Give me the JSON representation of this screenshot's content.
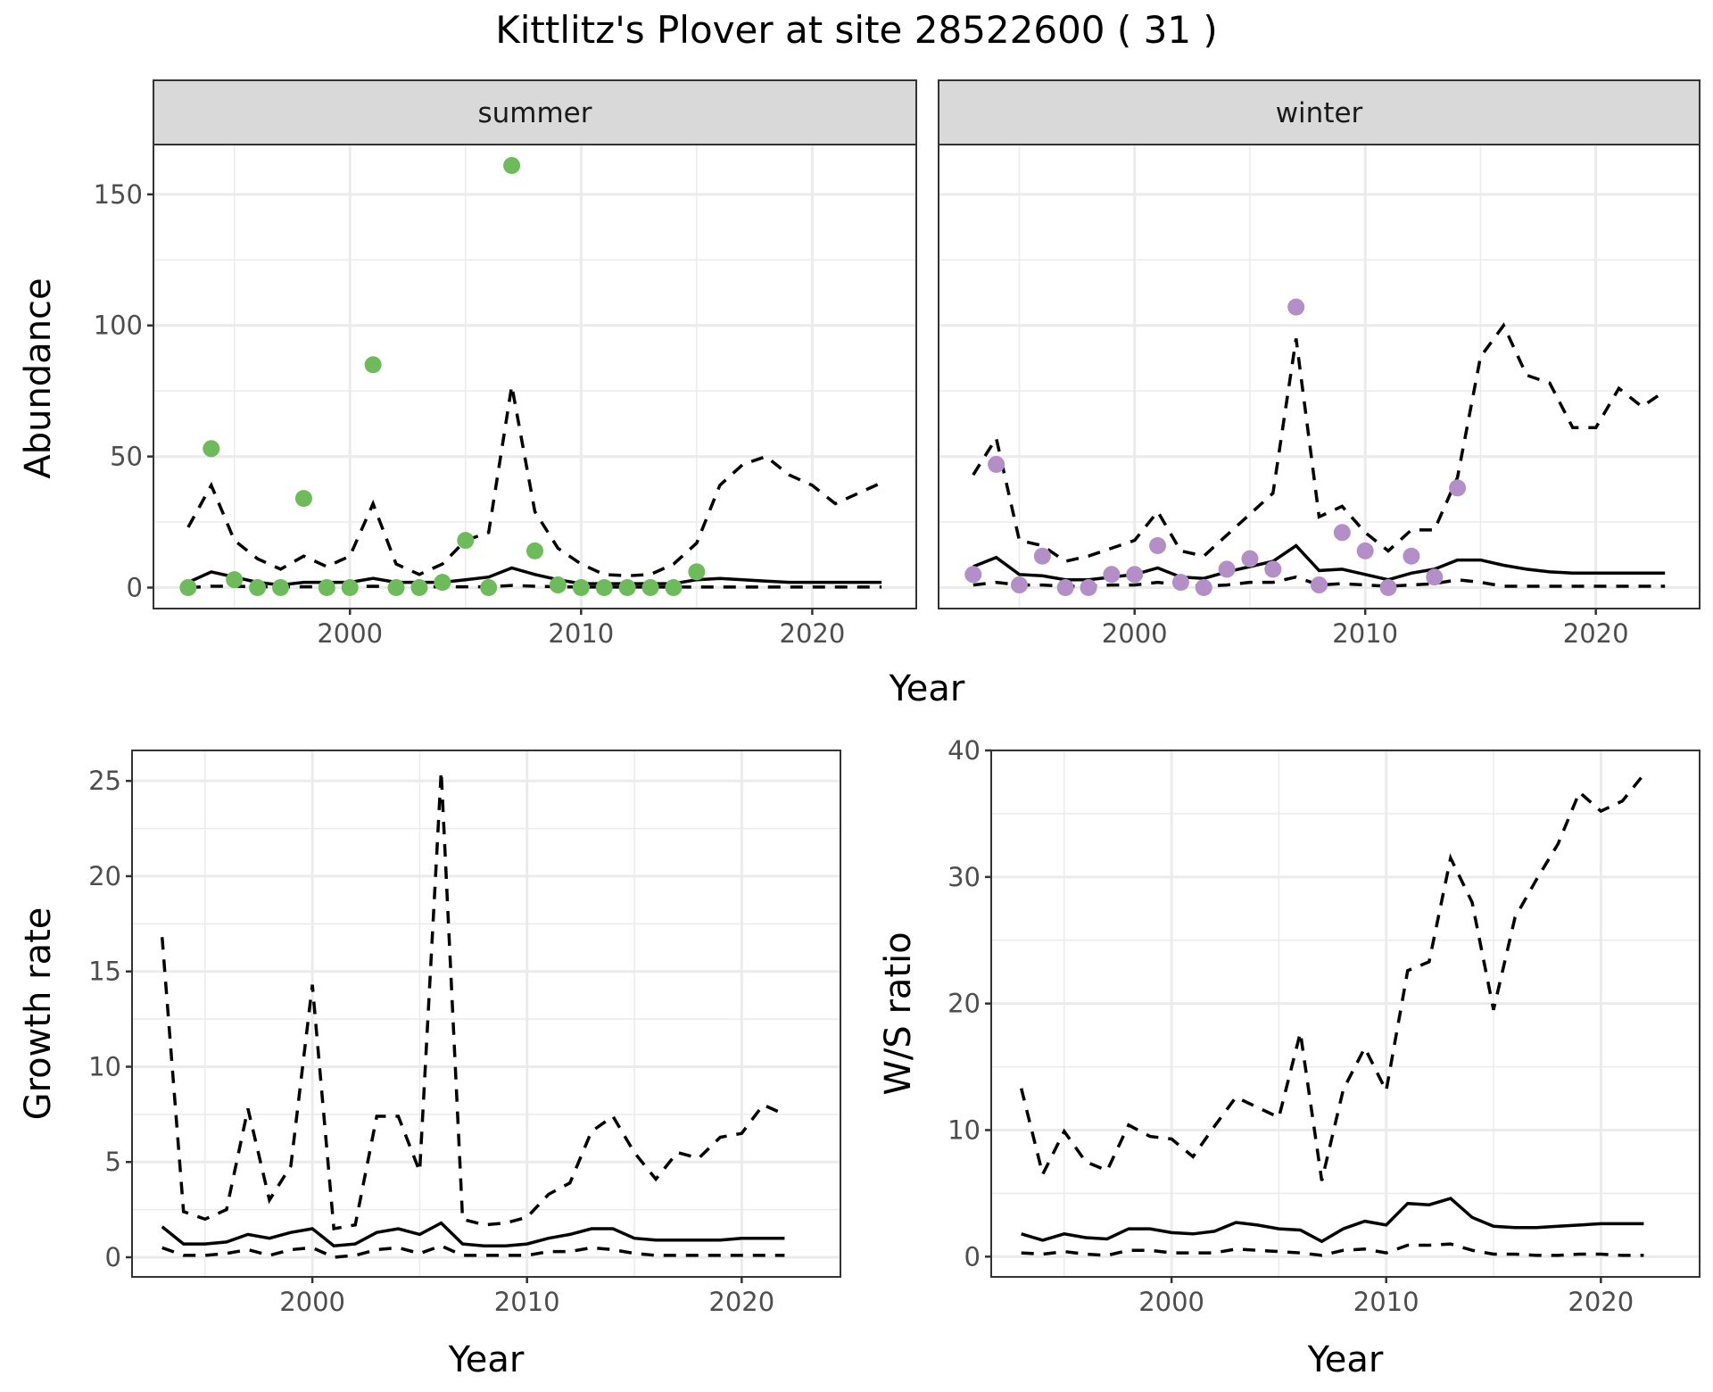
{
  "title": "Kittlitz's Plover at site 28522600 ( 31 )",
  "colors": {
    "summer_points": "#6dbb5b",
    "winter_points": "#b48fc7",
    "line": "#000000",
    "grid": "#ebebeb",
    "strip": "#d9d9d9"
  },
  "chart_data": [
    {
      "type": "scatter",
      "panel": "summer",
      "strip_label": "summer",
      "xlabel": "Year",
      "ylabel": "Abundance",
      "ylim": [
        -8,
        169
      ],
      "xlim": [
        1991.5,
        2024.5
      ],
      "yticks": [
        0,
        50,
        100,
        150
      ],
      "ytick_labels": [
        "0",
        "50",
        "100",
        "150"
      ],
      "xticks": [
        2000,
        2010,
        2020
      ],
      "xtick_labels": [
        "2000",
        "2010",
        "2020"
      ],
      "points": {
        "x": [
          1993,
          1994,
          1995,
          1996,
          1997,
          1998,
          1999,
          2000,
          2001,
          2002,
          2003,
          2004,
          2005,
          2006,
          2007,
          2008,
          2009,
          2010,
          2011,
          2012,
          2013,
          2014,
          2015
        ],
        "y": [
          0,
          53,
          3,
          0,
          0,
          34,
          0,
          0,
          85,
          0,
          0,
          2,
          18,
          0,
          161,
          14,
          1,
          0,
          0,
          0,
          0,
          0,
          6
        ]
      },
      "lines": {
        "x": [
          1993,
          1994,
          1995,
          1996,
          1997,
          1998,
          1999,
          2000,
          2001,
          2002,
          2003,
          2004,
          2005,
          2006,
          2007,
          2008,
          2009,
          2010,
          2011,
          2012,
          2013,
          2014,
          2015,
          2016,
          2017,
          2018,
          2019,
          2020,
          2021,
          2022,
          2023
        ],
        "mean": [
          2,
          6,
          4,
          2,
          1,
          2,
          2,
          2,
          3.5,
          2,
          2,
          2,
          3,
          4,
          7.5,
          5,
          3,
          1.5,
          1.5,
          1.5,
          1.5,
          1.5,
          3,
          3.5,
          3,
          2.5,
          2,
          2,
          2,
          2,
          2
        ],
        "upper": [
          23,
          39,
          18,
          11,
          7,
          12,
          8,
          12,
          32,
          9,
          5,
          9,
          18,
          21,
          77,
          29,
          15,
          9,
          5,
          4.5,
          5,
          9,
          17,
          39,
          47,
          50,
          43,
          39,
          32,
          36,
          40
        ],
        "lower": [
          0,
          0.5,
          0.5,
          0.3,
          0.3,
          0.3,
          0.3,
          0.3,
          0.5,
          0.3,
          0.3,
          0.3,
          0.3,
          0.3,
          0.8,
          0.5,
          0.3,
          0.2,
          0.2,
          0.2,
          0.2,
          0.2,
          0.2,
          0.2,
          0.2,
          0.2,
          0.2,
          0.2,
          0.2,
          0.2,
          0.2
        ]
      }
    },
    {
      "type": "scatter",
      "panel": "winter",
      "strip_label": "winter",
      "xlabel": "Year",
      "ylabel": "Abundance",
      "ylim": [
        -8,
        169
      ],
      "xlim": [
        1991.5,
        2024.5
      ],
      "xticks": [
        2000,
        2010,
        2020
      ],
      "xtick_labels": [
        "2000",
        "2010",
        "2020"
      ],
      "points": {
        "x": [
          1993,
          1994,
          1995,
          1996,
          1997,
          1998,
          1999,
          2000,
          2001,
          2002,
          2003,
          2004,
          2005,
          2006,
          2007,
          2008,
          2009,
          2010,
          2011,
          2012,
          2013,
          2014
        ],
        "y": [
          5,
          47,
          1,
          12,
          0,
          0,
          5,
          5,
          16,
          2,
          0,
          7,
          11,
          7,
          107,
          1,
          21,
          14,
          0,
          12,
          4,
          38
        ]
      },
      "lines": {
        "x": [
          1993,
          1994,
          1995,
          1996,
          1997,
          1998,
          1999,
          2000,
          2001,
          2002,
          2003,
          2004,
          2005,
          2006,
          2007,
          2008,
          2009,
          2010,
          2011,
          2012,
          2013,
          2014,
          2015,
          2016,
          2017,
          2018,
          2019,
          2020,
          2021,
          2022,
          2023
        ],
        "mean": [
          8,
          11.5,
          5,
          4.5,
          3,
          3,
          4,
          5,
          7.5,
          4,
          3.5,
          6,
          8,
          10,
          16,
          6.5,
          7,
          5,
          3,
          5.5,
          7,
          10.5,
          10.5,
          8.5,
          7,
          6,
          5.5,
          5.5,
          5.5,
          5.5,
          5.5
        ],
        "upper": [
          43,
          57,
          18,
          16,
          10,
          12,
          15,
          18,
          29,
          14,
          12,
          20,
          28,
          36,
          95,
          27,
          31,
          21,
          14,
          22,
          22,
          42,
          88,
          100,
          81,
          78,
          61,
          61,
          76,
          69,
          75
        ],
        "lower": [
          1,
          2,
          1,
          1,
          0.5,
          0.5,
          1,
          1,
          2,
          1,
          0.5,
          1,
          2,
          2,
          4,
          1,
          1.5,
          1,
          0.5,
          1,
          1.5,
          3,
          2,
          0.5,
          0.5,
          0.5,
          0.5,
          0.5,
          0.5,
          0.5,
          0.5
        ]
      }
    },
    {
      "type": "line",
      "panel": "growth",
      "xlabel": "Year",
      "ylabel": "Growth rate",
      "ylim": [
        -1.03,
        26.6
      ],
      "xlim": [
        1991.6,
        2024.6
      ],
      "yticks": [
        0,
        5,
        10,
        15,
        20,
        25
      ],
      "ytick_labels": [
        "0",
        "5",
        "10",
        "15",
        "20",
        "25"
      ],
      "xticks": [
        2000,
        2010,
        2020
      ],
      "xtick_labels": [
        "2000",
        "2010",
        "2020"
      ],
      "lines": {
        "x": [
          1993,
          1994,
          1995,
          1996,
          1997,
          1998,
          1999,
          2000,
          2001,
          2002,
          2003,
          2004,
          2005,
          2006,
          2007,
          2008,
          2009,
          2010,
          2011,
          2012,
          2013,
          2014,
          2015,
          2016,
          2017,
          2018,
          2019,
          2020,
          2021,
          2022
        ],
        "mean": [
          1.6,
          0.7,
          0.7,
          0.8,
          1.2,
          1.0,
          1.3,
          1.5,
          0.6,
          0.7,
          1.3,
          1.5,
          1.2,
          1.8,
          0.7,
          0.6,
          0.6,
          0.7,
          1.0,
          1.2,
          1.5,
          1.5,
          1.0,
          0.9,
          0.9,
          0.9,
          0.9,
          1.0,
          1.0,
          1.0
        ],
        "upper": [
          16.8,
          2.4,
          2.0,
          2.5,
          7.8,
          3.0,
          4.8,
          14.3,
          1.5,
          1.7,
          7.4,
          7.4,
          4.5,
          25.5,
          2.0,
          1.7,
          1.8,
          2.1,
          3.3,
          3.9,
          6.6,
          7.4,
          5.5,
          4.1,
          5.5,
          5.2,
          6.3,
          6.5,
          8.0,
          7.5
        ],
        "lower": [
          0.5,
          0.1,
          0.1,
          0.2,
          0.4,
          0.1,
          0.4,
          0.5,
          0.0,
          0.1,
          0.4,
          0.5,
          0.2,
          0.6,
          0.1,
          0.1,
          0.1,
          0.1,
          0.3,
          0.3,
          0.5,
          0.4,
          0.2,
          0.1,
          0.1,
          0.1,
          0.1,
          0.1,
          0.1,
          0.1
        ]
      }
    },
    {
      "type": "line",
      "panel": "ratio",
      "xlabel": "Year",
      "ylabel": "W/S ratio",
      "ylim": [
        -1.6,
        40
      ],
      "xlim": [
        1991.6,
        2024.6
      ],
      "yticks": [
        0,
        10,
        20,
        30,
        40
      ],
      "ytick_labels": [
        "0",
        "10",
        "20",
        "30",
        "40"
      ],
      "xticks": [
        2000,
        2010,
        2020
      ],
      "xtick_labels": [
        "2000",
        "2010",
        "2020"
      ],
      "lines": {
        "x": [
          1993,
          1994,
          1995,
          1996,
          1997,
          1998,
          1999,
          2000,
          2001,
          2002,
          2003,
          2004,
          2005,
          2006,
          2007,
          2008,
          2009,
          2010,
          2011,
          2012,
          2013,
          2014,
          2015,
          2016,
          2017,
          2018,
          2019,
          2020,
          2021,
          2022
        ],
        "mean": [
          1.8,
          1.3,
          1.8,
          1.5,
          1.4,
          2.2,
          2.2,
          1.9,
          1.8,
          2.0,
          2.7,
          2.5,
          2.2,
          2.1,
          1.2,
          2.2,
          2.8,
          2.5,
          4.2,
          4.1,
          4.6,
          3.1,
          2.4,
          2.3,
          2.3,
          2.4,
          2.5,
          2.6,
          2.6,
          2.6
        ],
        "upper": [
          13.3,
          6.5,
          9.9,
          7.5,
          6.8,
          10.4,
          9.5,
          9.3,
          7.9,
          10.3,
          12.6,
          11.8,
          11.0,
          17.7,
          6.0,
          13.2,
          16.5,
          13.1,
          22.6,
          23.3,
          31.5,
          28.0,
          19.5,
          26.8,
          29.8,
          32.6,
          36.7,
          35.2,
          36.0,
          38.1
        ],
        "lower": [
          0.3,
          0.2,
          0.4,
          0.2,
          0.1,
          0.5,
          0.5,
          0.3,
          0.3,
          0.3,
          0.6,
          0.5,
          0.4,
          0.3,
          0.1,
          0.5,
          0.6,
          0.3,
          0.9,
          0.9,
          1.0,
          0.5,
          0.2,
          0.2,
          0.1,
          0.1,
          0.2,
          0.2,
          0.1,
          0.1
        ]
      }
    }
  ],
  "axis": {
    "shared_top_xlabel": "Year"
  }
}
